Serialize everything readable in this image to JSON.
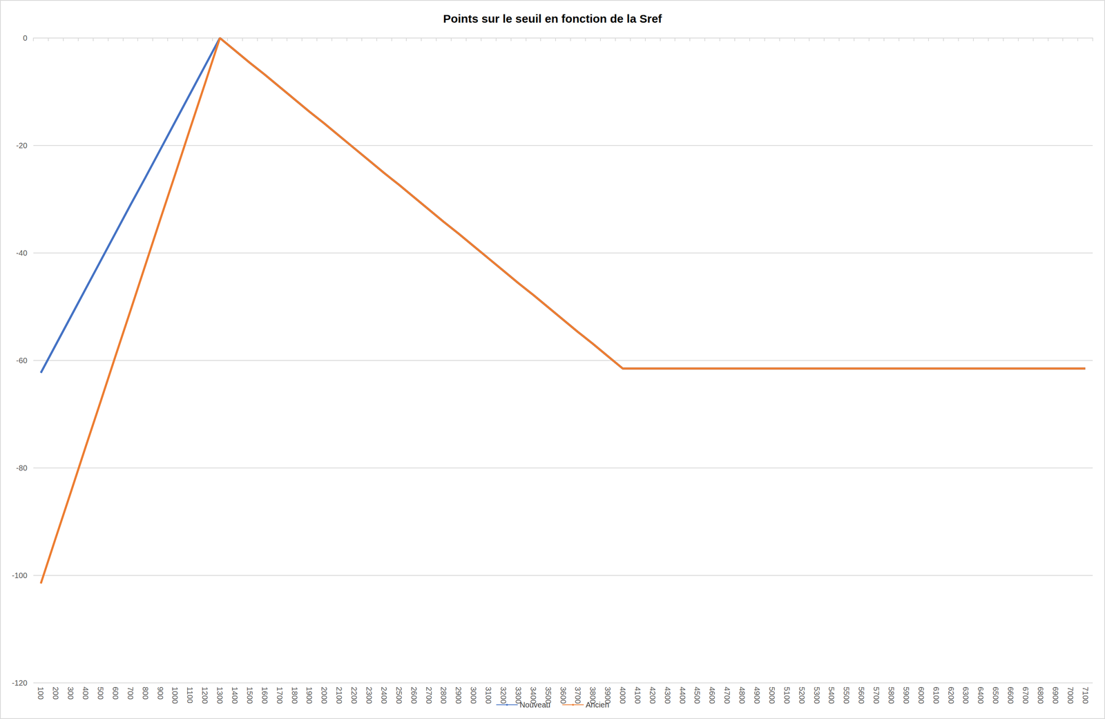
{
  "chart_data": {
    "type": "line",
    "title": "Points sur le seuil en fonction de la Sref",
    "categories": [
      "100",
      "200",
      "300",
      "400",
      "500",
      "600",
      "700",
      "800",
      "900",
      "1000",
      "1100",
      "1200",
      "1300",
      "1400",
      "1500",
      "1600",
      "1700",
      "1800",
      "1900",
      "2000",
      "2100",
      "2200",
      "2300",
      "2400",
      "2500",
      "2600",
      "2700",
      "2800",
      "2900",
      "3000",
      "3100",
      "3200",
      "3300",
      "3400",
      "3500",
      "3600",
      "3700",
      "3800",
      "3900",
      "4000",
      "4100",
      "4200",
      "4300",
      "4400",
      "4500",
      "4600",
      "4700",
      "4800",
      "4900",
      "5000",
      "5100",
      "5200",
      "5300",
      "5400",
      "5500",
      "5600",
      "5700",
      "5800",
      "5900",
      "6000",
      "6100",
      "6200",
      "6300",
      "6400",
      "6500",
      "6600",
      "6700",
      "6800",
      "6900",
      "7000",
      "7100"
    ],
    "series": [
      {
        "name": "Nouveau",
        "color": "#4472c4",
        "values": [
          -62.3,
          -57.1,
          -51.9,
          -46.7,
          -41.5,
          -36.3,
          -31.1,
          -26.0,
          -20.8,
          -15.6,
          -10.4,
          -5.2,
          0,
          -2.3,
          -4.6,
          -6.8,
          -9.1,
          -11.4,
          -13.7,
          -15.9,
          -18.2,
          -20.5,
          -22.8,
          -25.1,
          -27.3,
          -29.6,
          -31.9,
          -34.2,
          -36.4,
          -38.7,
          -41.0,
          -43.3,
          -45.6,
          -47.8,
          -50.1,
          -52.4,
          -54.7,
          -56.9,
          -59.2,
          -61.5,
          -61.5,
          -61.5,
          -61.5,
          -61.5,
          -61.5,
          -61.5,
          -61.5,
          -61.5,
          -61.5,
          -61.5,
          -61.5,
          -61.5,
          -61.5,
          -61.5,
          -61.5,
          -61.5,
          -61.5,
          -61.5,
          -61.5,
          -61.5,
          -61.5,
          -61.5,
          -61.5,
          -61.5,
          -61.5,
          -61.5,
          -61.5,
          -61.5,
          -61.5,
          -61.5,
          -61.5
        ]
      },
      {
        "name": "Ancien",
        "color": "#ed7d31",
        "values": [
          -101.5,
          -93.0,
          -84.6,
          -76.1,
          -67.7,
          -59.2,
          -50.8,
          -42.3,
          -33.8,
          -25.4,
          -16.9,
          -8.5,
          0,
          -2.3,
          -4.6,
          -6.8,
          -9.1,
          -11.4,
          -13.7,
          -15.9,
          -18.2,
          -20.5,
          -22.8,
          -25.1,
          -27.3,
          -29.6,
          -31.9,
          -34.2,
          -36.4,
          -38.7,
          -41.0,
          -43.3,
          -45.6,
          -47.8,
          -50.1,
          -52.4,
          -54.7,
          -56.9,
          -59.2,
          -61.5,
          -61.5,
          -61.5,
          -61.5,
          -61.5,
          -61.5,
          -61.5,
          -61.5,
          -61.5,
          -61.5,
          -61.5,
          -61.5,
          -61.5,
          -61.5,
          -61.5,
          -61.5,
          -61.5,
          -61.5,
          -61.5,
          -61.5,
          -61.5,
          -61.5,
          -61.5,
          -61.5,
          -61.5,
          -61.5,
          -61.5,
          -61.5,
          -61.5,
          -61.5,
          -61.5,
          -61.5
        ]
      }
    ],
    "ylim": [
      -120,
      0
    ],
    "yticks": [
      -120,
      -100,
      -80,
      -60,
      -40,
      -20,
      0
    ],
    "grid": true,
    "legend": "bottom"
  }
}
